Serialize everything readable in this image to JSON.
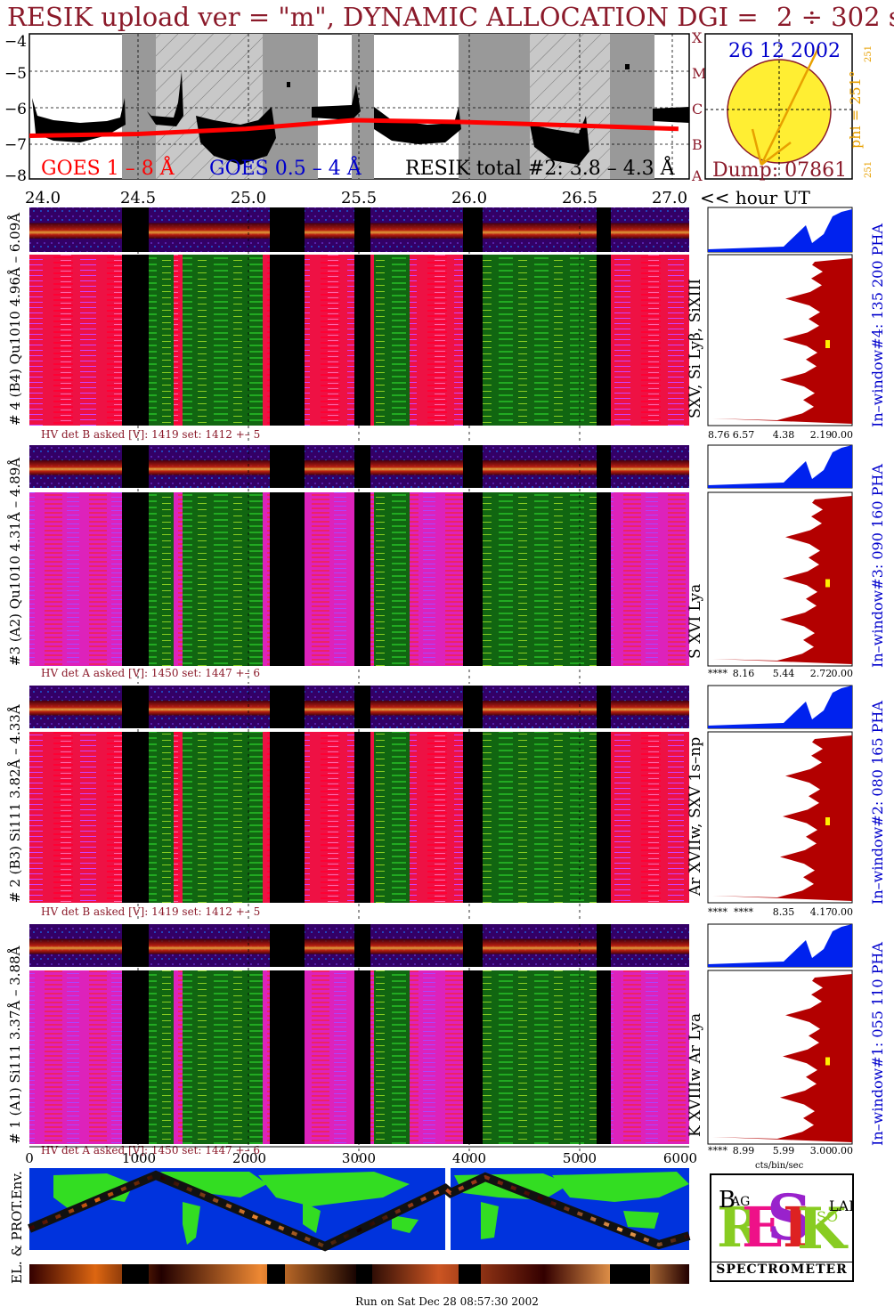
{
  "header": {
    "title": "RESIK upload ver = \"m\", DYNAMIC ALLOCATION  DGI =",
    "dgi_value": "2 ÷ 302 s"
  },
  "goes_panel": {
    "ylabels": [
      "−4",
      "−5",
      "−6",
      "−7",
      "−8"
    ],
    "right_classes": [
      "X",
      "M",
      "C",
      "B",
      "A"
    ],
    "legend": {
      "goes_long": "GOES 1 – 8 Å",
      "goes_short": "GOES 0.5 – 4 Å",
      "resik_total": "RESIK total #2: 3.8 – 4.3 Å"
    },
    "xticks": [
      "24.0",
      "24.5",
      "25.0",
      "25.5",
      "26.0",
      "26.5",
      "27.0"
    ],
    "xaxis_label": "<< hour UT"
  },
  "sun_panel": {
    "date": "26 12 2002",
    "dump": "Dump: 07861",
    "phi_label": "phi = 251°",
    "phi_small": "251",
    "phi_small_bottom": "251"
  },
  "channels": [
    {
      "id": "4",
      "left_label": "# 4 (B4) Qu1010 4.96Å – 6.09Å",
      "line_label": "SXV, Si Lyβ, SiXIII",
      "window_label": "In–window#4:  135 200 PHA",
      "hv": "HV det B asked [V]:  1419 set:  1412  +–    5",
      "scale": [
        "8.76",
        "6.57",
        "4.38",
        "2.19",
        "0.00"
      ]
    },
    {
      "id": "3",
      "left_label": "#3 (A2) Qu1010  4.31Å – 4.89Å",
      "line_label": "S XVI Lya",
      "window_label": "In–window#3:  090 160 PHA",
      "hv": "HV det A asked [V]:  1450 set:  1447  +–    6",
      "scale": [
        "****",
        "8.16",
        "5.44",
        "2.72",
        "0.00"
      ]
    },
    {
      "id": "2",
      "left_label": "# 2 (B3) Si111  3.82Å – 4.33Å",
      "line_label": "Ar XVIIw, SXV 1s–np",
      "window_label": "In–window#2:  080 165 PHA",
      "hv": "HV det B asked [V]:  1419 set:  1412  +–    5",
      "scale": [
        "****",
        "****",
        "8.35",
        "4.17",
        "0.00"
      ]
    },
    {
      "id": "1",
      "left_label": "# 1 (A1) Si111  3.37Å –  3.88Å",
      "line_label": "K XVIIIw  Ar Lya",
      "window_label": "In–window#1:  055 110 PHA",
      "hv": "HV det A asked [V]:  1450 set:  1447  +–    6",
      "scale": [
        "****",
        "8.99",
        "5.99",
        "3.00",
        "0.00"
      ]
    }
  ],
  "bottom_axis": {
    "ticks": [
      "0",
      "1000",
      "2000",
      "3000",
      "4000",
      "5000",
      "6000"
    ],
    "units": "cts/bin/sec"
  },
  "environment": {
    "label": "EL. & PROT.Env."
  },
  "logo": {
    "big": "RESIK",
    "label": "SPECTROMETER",
    "small_letters": [
      "B",
      "AG",
      "SO",
      "LAR"
    ]
  },
  "footer": {
    "run": "Run on Sat Dec 28 08:57:30 2002"
  },
  "colors": {
    "title": "#8b1a2a",
    "goes_long": "#ff0000",
    "goes_short": "#0000cc",
    "spectrum_fill": "#b30000",
    "pha_fill": "#0022ee",
    "sun": "#ffee33",
    "phi": "#e8a000"
  },
  "chart_data": {
    "type": "line",
    "xlabel": "<< hour UT",
    "xlim": [
      24.0,
      27.05
    ],
    "ylim": [
      -8,
      -3.8
    ],
    "series": [
      {
        "name": "GOES 1 – 8 Å",
        "x": [
          24.0,
          24.5,
          25.0,
          25.5,
          26.0,
          26.5,
          27.0
        ],
        "y": [
          -6.75,
          -6.7,
          -6.55,
          -6.3,
          -6.35,
          -6.45,
          -6.55
        ]
      },
      {
        "name": "RESIK total #2: 3.8 – 4.3 Å",
        "x": [
          24.05,
          24.4,
          24.6,
          24.8,
          25.0,
          25.2,
          25.5,
          25.8,
          26.0,
          26.3,
          26.55,
          26.75,
          27.0
        ],
        "y": [
          -6.2,
          -6.4,
          -6.2,
          -6.9,
          -7.0,
          -6.1,
          -6.0,
          -6.2,
          -6.4,
          -6.5,
          -6.9,
          -7.0,
          -6.1
        ]
      }
    ]
  }
}
